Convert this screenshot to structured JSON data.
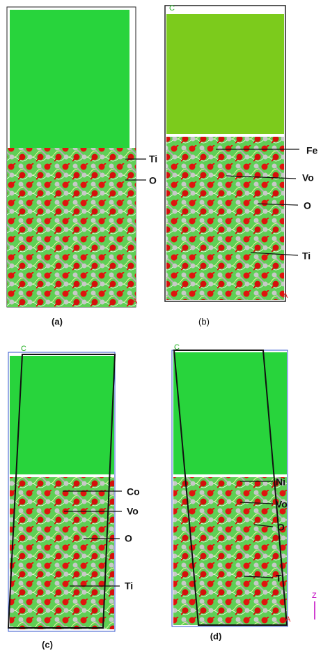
{
  "panels": [
    {
      "caption": "(a)",
      "labels": [
        "Ti",
        "O"
      ],
      "axes": [
        "A"
      ]
    },
    {
      "caption": "(b)",
      "labels": [
        "Fe",
        "Vo",
        "O",
        "Ti"
      ],
      "axes": [
        "C",
        "A"
      ]
    },
    {
      "caption": "(c)",
      "labels": [
        "Co",
        "Vo",
        "O",
        "Ti"
      ],
      "axes": [
        "C"
      ]
    },
    {
      "caption": "(d)",
      "labels": [
        "Ni",
        "Vo",
        "O",
        "Ti"
      ],
      "axes": [
        "C",
        "A",
        "Z"
      ]
    }
  ]
}
